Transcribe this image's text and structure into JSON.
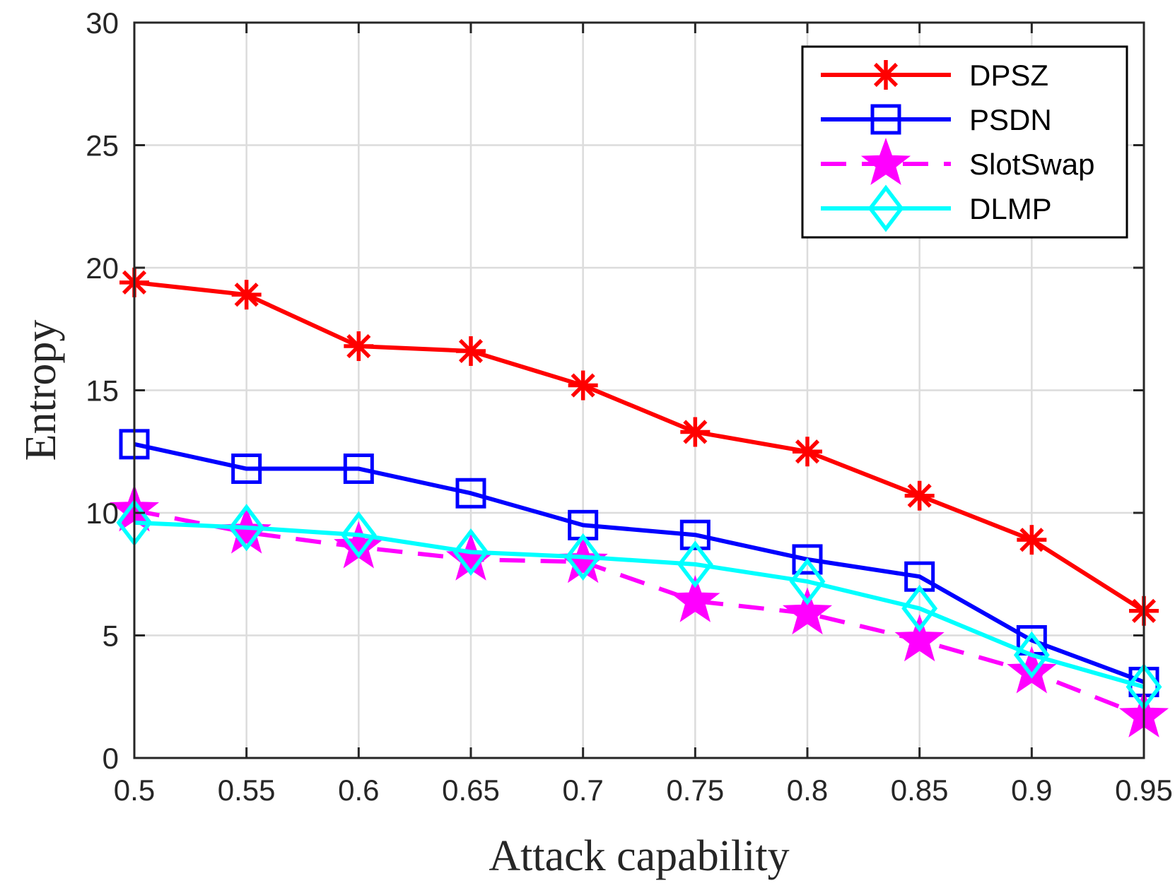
{
  "chart_data": {
    "type": "line",
    "xlabel": "Attack capability",
    "ylabel": "Entropy",
    "x": [
      0.5,
      0.55,
      0.6,
      0.65,
      0.7,
      0.75,
      0.8,
      0.85,
      0.9,
      0.95
    ],
    "x_tick_labels": [
      "0.5",
      "0.55",
      "0.6",
      "0.65",
      "0.7",
      "0.75",
      "0.8",
      "0.85",
      "0.9",
      "0.95"
    ],
    "y_ticks": [
      0,
      5,
      10,
      15,
      20,
      25,
      30
    ],
    "y_tick_labels": [
      "0",
      "5",
      "10",
      "15",
      "20",
      "25",
      "30"
    ],
    "xlim": [
      0.5,
      0.95
    ],
    "ylim": [
      0,
      30
    ],
    "grid": true,
    "legend_position": "top-right",
    "series": [
      {
        "name": "DPSZ",
        "color": "#ff0000",
        "marker": "asterisk",
        "dash": "solid",
        "values": [
          19.4,
          18.9,
          16.8,
          16.6,
          15.2,
          13.3,
          12.5,
          10.7,
          8.9,
          6.0
        ]
      },
      {
        "name": "PSDN",
        "color": "#0000ff",
        "marker": "square",
        "dash": "solid",
        "values": [
          12.8,
          11.8,
          11.8,
          10.8,
          9.5,
          9.1,
          8.1,
          7.4,
          4.8,
          3.1
        ]
      },
      {
        "name": "SlotSwap",
        "color": "#ff00ff",
        "marker": "pentagram",
        "dash": "dashed",
        "values": [
          10.1,
          9.2,
          8.6,
          8.1,
          8.0,
          6.4,
          5.9,
          4.8,
          3.5,
          1.7
        ]
      },
      {
        "name": "DLMP",
        "color": "#00ffff",
        "marker": "diamond",
        "dash": "solid",
        "values": [
          9.6,
          9.4,
          9.1,
          8.4,
          8.2,
          7.9,
          7.2,
          6.1,
          4.2,
          2.9
        ]
      }
    ]
  }
}
